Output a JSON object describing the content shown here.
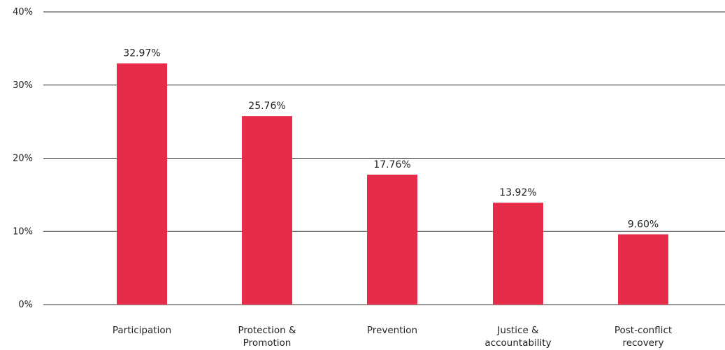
{
  "chart_data": {
    "type": "bar",
    "categories": [
      [
        "Participation"
      ],
      [
        "Protection &",
        "Promotion"
      ],
      [
        "Prevention"
      ],
      [
        "Justice &",
        "accountability"
      ],
      [
        "Post-conflict",
        "recovery"
      ]
    ],
    "values": [
      32.97,
      25.76,
      17.76,
      13.92,
      9.6
    ],
    "data_labels": [
      "32.97%",
      "25.76%",
      "17.76%",
      "13.92%",
      "9.60%"
    ],
    "y_ticks": [
      {
        "value": 0,
        "label": "0%"
      },
      {
        "value": 10,
        "label": "10%"
      },
      {
        "value": 20,
        "label": "20%"
      },
      {
        "value": 30,
        "label": "30%"
      },
      {
        "value": 40,
        "label": "40%"
      }
    ],
    "ylim": [
      0,
      40
    ],
    "grid": true,
    "bar_color": "#e62c48",
    "title": "",
    "xlabel": "",
    "ylabel": ""
  }
}
